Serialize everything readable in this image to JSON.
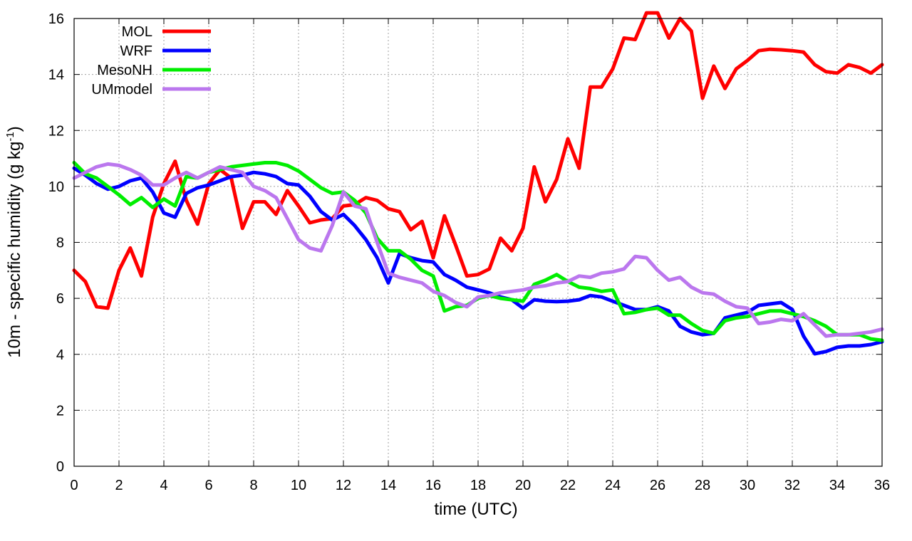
{
  "chart_data": {
    "type": "line",
    "xlabel": "time (UTC)",
    "ylabel": "10m - specific humidity (g kg",
    "ylabel_sup": "-1",
    "ylabel_end": ")",
    "xlim": [
      0,
      36
    ],
    "ylim": [
      0,
      16
    ],
    "xticks": [
      0,
      2,
      4,
      6,
      8,
      10,
      12,
      14,
      16,
      18,
      20,
      22,
      24,
      26,
      28,
      30,
      32,
      34,
      36
    ],
    "yticks": [
      0,
      2,
      4,
      6,
      8,
      10,
      12,
      14,
      16
    ],
    "grid": true,
    "legend_position": "top-left",
    "series": [
      {
        "name": "MOL",
        "color": "#ff0000",
        "x": [
          0,
          0.5,
          1,
          1.5,
          2,
          2.5,
          3,
          3.5,
          4,
          4.5,
          5,
          5.5,
          6,
          6.5,
          7,
          7.5,
          8,
          8.5,
          9,
          9.5,
          10,
          10.5,
          11,
          11.5,
          12,
          12.5,
          13,
          13.5,
          14,
          14.5,
          15,
          15.5,
          16,
          16.5,
          17,
          17.5,
          18,
          18.5,
          19,
          19.5,
          20,
          20.5,
          21,
          21.5,
          22,
          22.5,
          23,
          23.5,
          24,
          24.5,
          25,
          25.5,
          26,
          26.5,
          27,
          27.5,
          28,
          28.5,
          29,
          29.5,
          30,
          30.5,
          31,
          31.5,
          32,
          32.5,
          33,
          33.5,
          34,
          34.5,
          35,
          35.5,
          36
        ],
        "values": [
          7.0,
          6.6,
          5.7,
          5.65,
          7.0,
          7.8,
          6.8,
          8.9,
          10.1,
          10.9,
          9.5,
          8.65,
          10.1,
          10.6,
          10.3,
          8.5,
          9.45,
          9.45,
          9.0,
          9.85,
          9.3,
          8.7,
          8.8,
          8.85,
          9.3,
          9.35,
          9.6,
          9.5,
          9.2,
          9.1,
          8.45,
          8.75,
          7.45,
          8.95,
          7.9,
          6.8,
          6.85,
          7.05,
          8.15,
          7.7,
          8.5,
          10.7,
          9.45,
          10.25,
          11.7,
          10.65,
          13.55,
          13.55,
          14.2,
          15.3,
          15.25,
          16.2,
          16.2,
          15.3,
          16.0,
          15.55,
          13.15,
          14.3,
          13.5,
          14.2,
          14.5,
          14.85,
          14.9,
          14.88,
          14.85,
          14.8,
          14.35,
          14.1,
          14.05,
          14.35,
          14.25,
          14.05,
          14.35
        ]
      },
      {
        "name": "WRF",
        "color": "#0000ff",
        "x": [
          0,
          0.5,
          1,
          1.5,
          2,
          2.5,
          3,
          3.5,
          4,
          4.5,
          5,
          5.5,
          6,
          6.5,
          7,
          7.5,
          8,
          8.5,
          9,
          9.5,
          10,
          10.5,
          11,
          11.5,
          12,
          12.5,
          13,
          13.5,
          14,
          14.5,
          15,
          15.5,
          16,
          16.5,
          17,
          17.5,
          18,
          18.5,
          19,
          19.5,
          20,
          20.5,
          21,
          21.5,
          22,
          22.5,
          23,
          23.5,
          24,
          24.5,
          25,
          25.5,
          26,
          26.5,
          27,
          27.5,
          28,
          28.5,
          29,
          29.5,
          30,
          30.5,
          31,
          31.5,
          32,
          32.5,
          33,
          33.5,
          34,
          34.5,
          35,
          35.5,
          36
        ],
        "values": [
          10.65,
          10.4,
          10.1,
          9.9,
          10.0,
          10.2,
          10.3,
          9.8,
          9.05,
          8.9,
          9.75,
          9.95,
          10.05,
          10.2,
          10.35,
          10.4,
          10.5,
          10.45,
          10.35,
          10.1,
          10.05,
          9.65,
          9.1,
          8.8,
          9.0,
          8.6,
          8.1,
          7.45,
          6.55,
          7.6,
          7.45,
          7.35,
          7.3,
          6.85,
          6.65,
          6.4,
          6.3,
          6.2,
          6.05,
          5.95,
          5.65,
          5.95,
          5.9,
          5.88,
          5.9,
          5.95,
          6.1,
          6.05,
          5.9,
          5.75,
          5.6,
          5.6,
          5.7,
          5.55,
          5.0,
          4.8,
          4.7,
          4.75,
          5.3,
          5.4,
          5.5,
          5.75,
          5.8,
          5.85,
          5.6,
          4.65,
          4.02,
          4.1,
          4.25,
          4.3,
          4.3,
          4.35,
          4.45
        ]
      },
      {
        "name": "MesoNH",
        "color": "#00ee00",
        "x": [
          0,
          0.5,
          1,
          1.5,
          2,
          2.5,
          3,
          3.5,
          4,
          4.5,
          5,
          5.5,
          6,
          6.5,
          7,
          7.5,
          8,
          8.5,
          9,
          9.5,
          10,
          10.5,
          11,
          11.5,
          12,
          12.5,
          13,
          13.5,
          14,
          14.5,
          15,
          15.5,
          16,
          16.5,
          17,
          17.5,
          18,
          18.5,
          19,
          19.5,
          20,
          20.5,
          21,
          21.5,
          22,
          22.5,
          23,
          23.5,
          24,
          24.5,
          25,
          25.5,
          26,
          26.5,
          27,
          27.5,
          28,
          28.5,
          29,
          29.5,
          30,
          30.5,
          31,
          31.5,
          32,
          32.5,
          33,
          33.5,
          34,
          34.5,
          35,
          35.5,
          36
        ],
        "values": [
          10.85,
          10.45,
          10.3,
          10.0,
          9.7,
          9.35,
          9.6,
          9.25,
          9.55,
          9.3,
          10.35,
          10.3,
          10.5,
          10.6,
          10.7,
          10.75,
          10.8,
          10.85,
          10.85,
          10.75,
          10.55,
          10.25,
          9.95,
          9.75,
          9.8,
          9.5,
          9.05,
          8.15,
          7.7,
          7.7,
          7.4,
          7.0,
          6.8,
          5.55,
          5.7,
          5.75,
          6.0,
          6.1,
          6.0,
          5.95,
          5.9,
          6.5,
          6.65,
          6.85,
          6.6,
          6.4,
          6.35,
          6.25,
          6.3,
          5.45,
          5.5,
          5.6,
          5.65,
          5.4,
          5.4,
          5.1,
          4.85,
          4.75,
          5.2,
          5.3,
          5.35,
          5.45,
          5.55,
          5.55,
          5.45,
          5.35,
          5.2,
          5.0,
          4.7,
          4.7,
          4.7,
          4.55,
          4.5
        ]
      },
      {
        "name": "UMmodel",
        "color": "#bb77ee",
        "x": [
          0,
          0.5,
          1,
          1.5,
          2,
          2.5,
          3,
          3.5,
          4,
          4.5,
          5,
          5.5,
          6,
          6.5,
          7,
          7.5,
          8,
          8.5,
          9,
          9.5,
          10,
          10.5,
          11,
          11.5,
          12,
          12.5,
          13,
          13.5,
          14,
          14.5,
          15,
          15.5,
          16,
          16.5,
          17,
          17.5,
          18,
          18.5,
          19,
          19.5,
          20,
          20.5,
          21,
          21.5,
          22,
          22.5,
          23,
          23.5,
          24,
          24.5,
          25,
          25.5,
          26,
          26.5,
          27,
          27.5,
          28,
          28.5,
          29,
          29.5,
          30,
          30.5,
          31,
          31.5,
          32,
          32.5,
          33,
          33.5,
          34,
          34.5,
          35,
          35.5,
          36
        ],
        "values": [
          10.3,
          10.5,
          10.7,
          10.8,
          10.75,
          10.6,
          10.4,
          10.05,
          10.05,
          10.3,
          10.5,
          10.3,
          10.5,
          10.7,
          10.6,
          10.5,
          10.0,
          9.85,
          9.6,
          8.85,
          8.1,
          7.8,
          7.7,
          8.6,
          9.8,
          9.3,
          9.2,
          8.0,
          6.9,
          6.75,
          6.65,
          6.55,
          6.25,
          6.1,
          5.85,
          5.7,
          6.05,
          6.1,
          6.2,
          6.25,
          6.3,
          6.4,
          6.45,
          6.55,
          6.6,
          6.8,
          6.75,
          6.9,
          6.95,
          7.05,
          7.5,
          7.45,
          7.0,
          6.65,
          6.75,
          6.4,
          6.2,
          6.15,
          5.9,
          5.7,
          5.65,
          5.1,
          5.15,
          5.25,
          5.2,
          5.45,
          5.05,
          4.65,
          4.7,
          4.7,
          4.75,
          4.8,
          4.9
        ]
      }
    ]
  }
}
